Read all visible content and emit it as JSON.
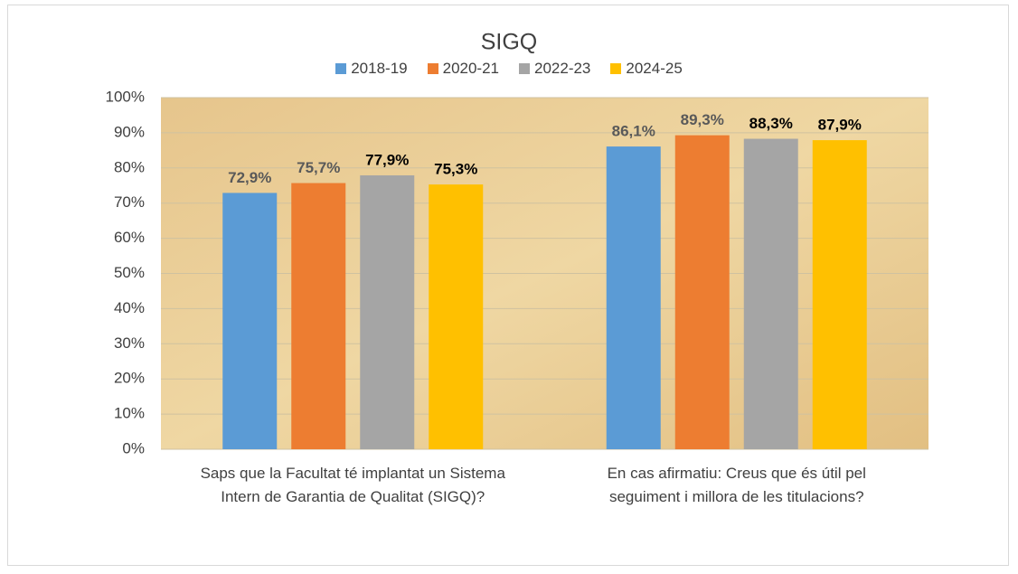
{
  "chart_data": {
    "type": "bar",
    "title": "SIGQ",
    "categories": [
      "Saps que la Facultat té implantat un Sistema Intern de Garantia de Qualitat (SIGQ)?",
      "En cas afirmatiu: Creus que és útil pel seguiment i millora de les titulacions?"
    ],
    "series": [
      {
        "name": "2018-19",
        "color": "#5b9bd5",
        "label_color": "#595959",
        "values": [
          72.9,
          86.1
        ],
        "value_labels": [
          "72,9%",
          "86,1%"
        ]
      },
      {
        "name": "2020-21",
        "color": "#ed7d31",
        "label_color": "#595959",
        "values": [
          75.7,
          89.3
        ],
        "value_labels": [
          "75,7%",
          "89,3%"
        ]
      },
      {
        "name": "2022-23",
        "color": "#a5a5a5",
        "label_color": "#000000",
        "values": [
          77.9,
          88.3
        ],
        "value_labels": [
          "77,9%",
          "88,3%"
        ]
      },
      {
        "name": "2024-25",
        "color": "#ffc000",
        "label_color": "#000000",
        "values": [
          75.3,
          87.9
        ],
        "value_labels": [
          "75,3%",
          "87,9%"
        ]
      }
    ],
    "ylim": [
      0,
      100
    ],
    "yticks": [
      {
        "value": 0,
        "label": "0%"
      },
      {
        "value": 10,
        "label": "10%"
      },
      {
        "value": 20,
        "label": "20%"
      },
      {
        "value": 30,
        "label": "30%"
      },
      {
        "value": 40,
        "label": "40%"
      },
      {
        "value": 50,
        "label": "50%"
      },
      {
        "value": 60,
        "label": "60%"
      },
      {
        "value": 70,
        "label": "70%"
      },
      {
        "value": 80,
        "label": "80%"
      },
      {
        "value": 90,
        "label": "90%"
      },
      {
        "value": 100,
        "label": "100%"
      }
    ],
    "grid": true,
    "legend": "top"
  }
}
